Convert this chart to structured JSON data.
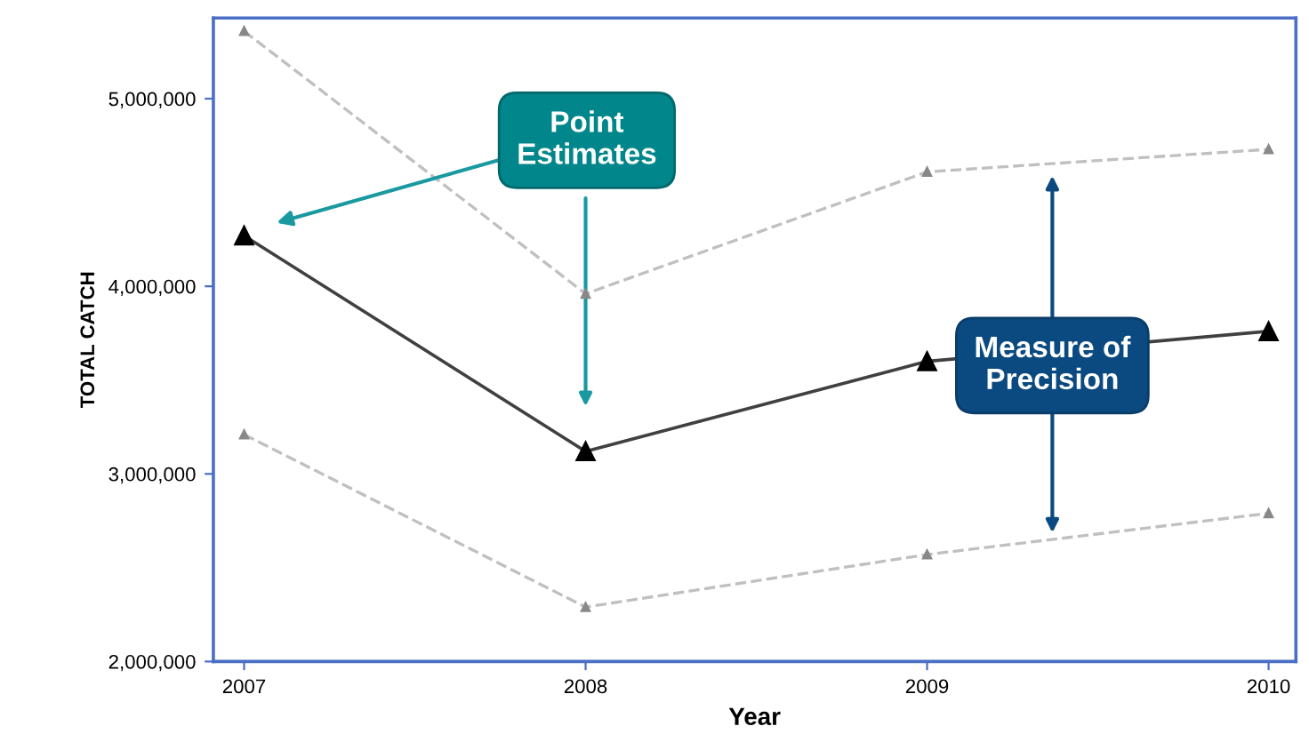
{
  "chart_data": {
    "type": "line",
    "xlabel": "Year",
    "ylabel": "TOTAL CATCH",
    "x": [
      2007,
      2008,
      2009,
      2010
    ],
    "series": [
      {
        "color": "#404040",
        "values": [
          4270000,
          3120000,
          3600000,
          3760000
        ],
        "marker": "triangle",
        "line_style": "solid"
      },
      {
        "color": "#c0c0c0",
        "values": [
          5360000,
          3960000,
          4610000,
          4730000
        ],
        "marker": "triangle",
        "line_style": "dashed"
      },
      {
        "color": "#c0c0c0",
        "values": [
          3210000,
          2290000,
          2570000,
          2790000
        ],
        "marker": "triangle",
        "line_style": "dashed"
      }
    ],
    "xlim": [
      2006.91,
      2010.08
    ],
    "xticks": [
      2007,
      2008,
      2009,
      2010
    ],
    "ylim": [
      2000000,
      5430000
    ],
    "yticks": [
      {
        "value": 2000000,
        "label": "2,000,000"
      },
      {
        "value": 3000000,
        "label": "3,000,000"
      },
      {
        "value": 4000000,
        "label": "4,000,000"
      },
      {
        "value": 5000000,
        "label": "5,000,000"
      }
    ],
    "grid": false,
    "legend": false,
    "annotations": [
      "Point\nEstimates",
      "Measure of\nPrecision"
    ]
  }
}
